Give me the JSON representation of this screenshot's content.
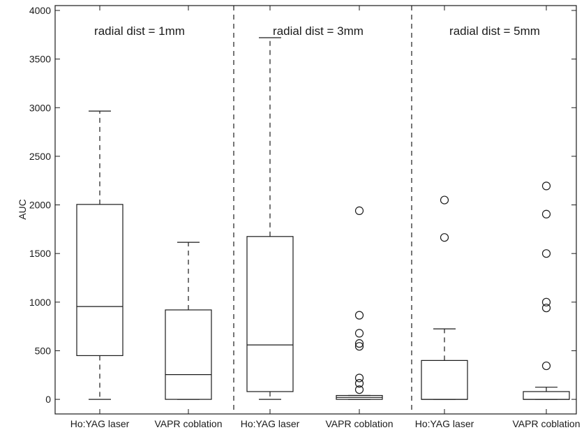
{
  "chart_data": {
    "type": "box",
    "ylabel": "AUC",
    "ylim": [
      -150,
      4050
    ],
    "yticks": [
      0,
      500,
      1000,
      1500,
      2000,
      2500,
      3000,
      3500,
      4000
    ],
    "groups": [
      "Ho:YAG laser",
      "VAPR coblation"
    ],
    "panels": [
      {
        "title": "radial dist = 1mm",
        "boxes": [
          {
            "category": "Ho:YAG laser",
            "whisker_low": 0,
            "q1": 450,
            "median": 955,
            "q3": 2005,
            "whisker_high": 2965,
            "outliers": []
          },
          {
            "category": "VAPR coblation",
            "whisker_low": 0,
            "q1": 0,
            "median": 255,
            "q3": 920,
            "whisker_high": 1615,
            "outliers": []
          }
        ]
      },
      {
        "title": "radial dist = 3mm",
        "boxes": [
          {
            "category": "Ho:YAG laser",
            "whisker_low": 0,
            "q1": 80,
            "median": 560,
            "q3": 1675,
            "whisker_high": 3720,
            "outliers": []
          },
          {
            "category": "VAPR coblation",
            "whisker_low": 0,
            "q1": 0,
            "median": 20,
            "q3": 40,
            "whisker_high": 40,
            "outliers": [
              100,
              165,
              220,
              545,
              575,
              680,
              865,
              1940
            ]
          }
        ]
      },
      {
        "title": "radial dist = 5mm",
        "boxes": [
          {
            "category": "Ho:YAG laser",
            "whisker_low": 0,
            "q1": 0,
            "median": 0,
            "q3": 400,
            "whisker_high": 725,
            "outliers": [
              1665,
              2050
            ]
          },
          {
            "category": "VAPR coblation",
            "whisker_low": 0,
            "q1": 0,
            "median": 0,
            "q3": 80,
            "whisker_high": 125,
            "outliers": [
              345,
              940,
              1000,
              1500,
              1905,
              2195
            ]
          }
        ]
      }
    ],
    "grid": false,
    "legend": "none",
    "colors": {
      "stroke": "#1a1a1a",
      "background": "#ffffff"
    }
  }
}
